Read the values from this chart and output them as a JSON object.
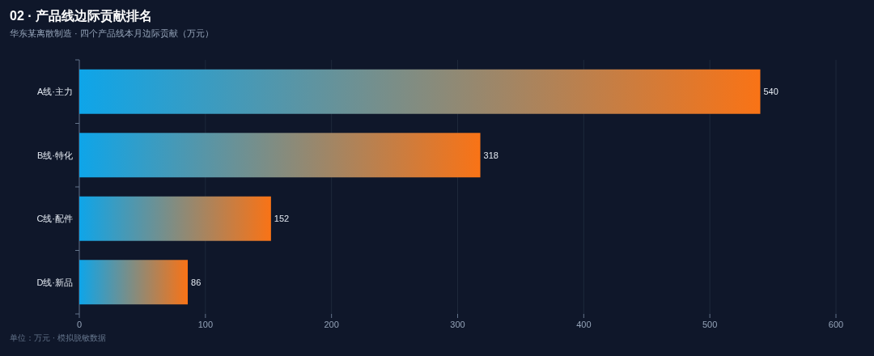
{
  "chart_data": {
    "type": "bar",
    "orientation": "horizontal",
    "title": "02 · 产品线边际贡献排名",
    "subtitle": "华东某离散制造 · 四个产品线本月边际贡献（万元）",
    "categories": [
      "A线·主力",
      "B线·特化",
      "C线·配件",
      "D线·新品"
    ],
    "series": [
      {
        "color": "#f97316",
        "values": [
          540,
          318,
          152,
          86
        ]
      }
    ],
    "xlim": [
      0,
      600
    ],
    "xticks": [
      0,
      100,
      200,
      300,
      400,
      500,
      600
    ],
    "grid": "x",
    "data_labels": true,
    "annotations": [
      "单位：万元 · 模拟脱敏数据"
    ]
  }
}
